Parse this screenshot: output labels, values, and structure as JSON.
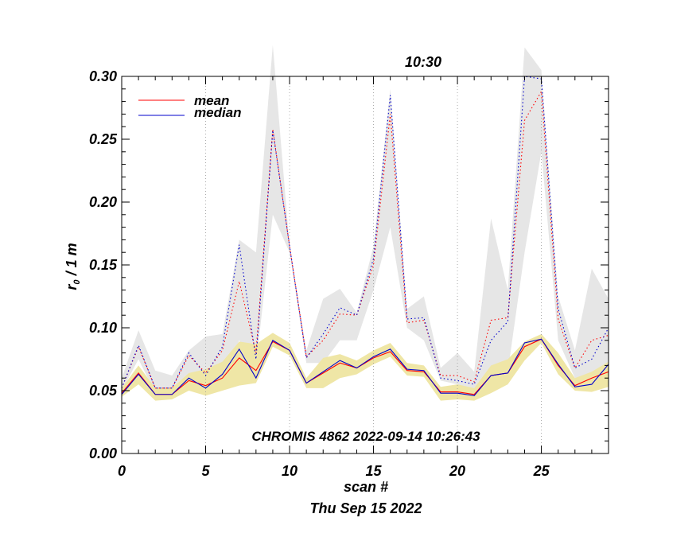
{
  "chart_data": {
    "type": "line",
    "title": "10:30",
    "xlabel": "scan #",
    "ylabel_main": "r",
    "ylabel_sub": "0",
    "ylabel_rest": " / 1 m",
    "date_label": "Thu Sep 15 2022",
    "annotation": "CHROMIS 4862 2022-09-14 10:26:43",
    "xlim": [
      0,
      29
    ],
    "ylim": [
      0.0,
      0.3
    ],
    "x_ticks": [
      0,
      5,
      10,
      15,
      20,
      25
    ],
    "x_tick_labels": [
      "0",
      "5",
      "10",
      "15",
      "20",
      "25"
    ],
    "y_ticks": [
      0.0,
      0.05,
      0.1,
      0.15,
      0.2,
      0.25,
      0.3
    ],
    "y_tick_labels": [
      "0.00",
      "0.05",
      "0.10",
      "0.15",
      "0.20",
      "0.25",
      "0.30"
    ],
    "grid_x_lines": [
      5,
      10,
      15,
      20,
      25
    ],
    "legend": {
      "position": "top-left",
      "entries": [
        {
          "name": "mean",
          "color": "#ff0000"
        },
        {
          "name": "median",
          "color": "#0000cc"
        }
      ]
    },
    "x": [
      0,
      1,
      2,
      3,
      4,
      5,
      6,
      7,
      8,
      9,
      10,
      11,
      12,
      13,
      14,
      15,
      16,
      17,
      18,
      19,
      20,
      21,
      22,
      23,
      24,
      25,
      26,
      27,
      28,
      29
    ],
    "series": [
      {
        "name": "mean",
        "style": "solid",
        "color": "#ff0000",
        "values": [
          0.048,
          0.064,
          0.047,
          0.047,
          0.058,
          0.054,
          0.06,
          0.076,
          0.066,
          0.089,
          0.082,
          0.056,
          0.064,
          0.072,
          0.068,
          0.076,
          0.081,
          0.066,
          0.065,
          0.049,
          0.049,
          0.047,
          0.062,
          0.064,
          0.085,
          0.091,
          0.07,
          0.054,
          0.06,
          0.065
        ]
      },
      {
        "name": "median",
        "style": "solid",
        "color": "#0000cc",
        "values": [
          0.047,
          0.063,
          0.047,
          0.047,
          0.06,
          0.052,
          0.063,
          0.083,
          0.06,
          0.09,
          0.082,
          0.056,
          0.065,
          0.074,
          0.068,
          0.077,
          0.083,
          0.067,
          0.066,
          0.048,
          0.048,
          0.046,
          0.062,
          0.064,
          0.088,
          0.091,
          0.071,
          0.053,
          0.055,
          0.071
        ]
      },
      {
        "name": "mean-upper",
        "style": "dotted",
        "color": "#ff0000",
        "values": [
          0.052,
          0.085,
          0.052,
          0.052,
          0.078,
          0.064,
          0.082,
          0.137,
          0.08,
          0.258,
          0.165,
          0.077,
          0.09,
          0.111,
          0.11,
          0.15,
          0.27,
          0.104,
          0.106,
          0.062,
          0.062,
          0.057,
          0.106,
          0.108,
          0.265,
          0.288,
          0.107,
          0.068,
          0.09,
          0.094
        ]
      },
      {
        "name": "median-upper",
        "style": "dotted",
        "color": "#0000cc",
        "values": [
          0.052,
          0.086,
          0.052,
          0.052,
          0.08,
          0.062,
          0.085,
          0.166,
          0.075,
          0.257,
          0.165,
          0.076,
          0.095,
          0.116,
          0.11,
          0.155,
          0.285,
          0.107,
          0.108,
          0.06,
          0.058,
          0.055,
          0.09,
          0.105,
          0.3,
          0.298,
          0.115,
          0.068,
          0.075,
          0.1
        ]
      }
    ],
    "bands": [
      {
        "name": "scatter-range",
        "color": "#e6e6e6",
        "lower": [
          0.05,
          0.075,
          0.048,
          0.048,
          0.06,
          0.052,
          0.06,
          0.09,
          0.07,
          0.19,
          0.16,
          0.072,
          0.072,
          0.09,
          0.09,
          0.13,
          0.18,
          0.1,
          0.09,
          0.058,
          0.055,
          0.05,
          0.06,
          0.065,
          0.16,
          0.24,
          0.09,
          0.06,
          0.06,
          0.07
        ],
        "upper": [
          0.06,
          0.098,
          0.066,
          0.062,
          0.082,
          0.093,
          0.095,
          0.17,
          0.16,
          0.325,
          0.165,
          0.082,
          0.123,
          0.131,
          0.112,
          0.165,
          0.29,
          0.115,
          0.125,
          0.068,
          0.08,
          0.065,
          0.187,
          0.13,
          0.323,
          0.305,
          0.125,
          0.082,
          0.147,
          0.123
        ]
      },
      {
        "name": "ground-layer",
        "color": "#efe6a6",
        "lower": [
          0.045,
          0.055,
          0.042,
          0.043,
          0.05,
          0.046,
          0.05,
          0.054,
          0.056,
          0.085,
          0.078,
          0.052,
          0.052,
          0.06,
          0.063,
          0.071,
          0.077,
          0.062,
          0.061,
          0.042,
          0.043,
          0.042,
          0.048,
          0.055,
          0.074,
          0.088,
          0.063,
          0.05,
          0.049,
          0.053
        ],
        "upper": [
          0.052,
          0.07,
          0.052,
          0.052,
          0.064,
          0.067,
          0.073,
          0.089,
          0.087,
          0.096,
          0.088,
          0.06,
          0.076,
          0.079,
          0.074,
          0.082,
          0.088,
          0.072,
          0.07,
          0.053,
          0.055,
          0.052,
          0.07,
          0.075,
          0.089,
          0.095,
          0.08,
          0.06,
          0.065,
          0.073
        ]
      }
    ]
  }
}
